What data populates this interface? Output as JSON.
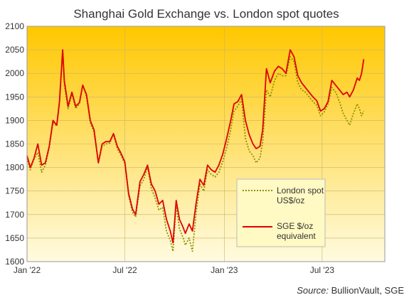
{
  "chart_data": {
    "type": "line",
    "title": "Shanghai  Gold Exchange  vs.  London  spot quotes",
    "source_label": "Source:",
    "source_text": " BullionVault, SGE",
    "xlabel": "",
    "ylabel": "",
    "ylim": [
      1600,
      2100
    ],
    "yticks": [
      1600,
      1650,
      1700,
      1750,
      1800,
      1850,
      1900,
      1950,
      2000,
      2050,
      2100
    ],
    "xlim": [
      "2022-01-01",
      "2023-10-25"
    ],
    "xticks": [
      {
        "date": "2022-01-01",
        "label": "Jan '22"
      },
      {
        "date": "2022-07-01",
        "label": "Jul '22"
      },
      {
        "date": "2023-01-01",
        "label": "Jan '23"
      },
      {
        "date": "2023-07-01",
        "label": "Jul '23"
      }
    ],
    "gridlines": true,
    "legend_position": "lower-right",
    "background_gradient": [
      "#ffc700",
      "#fffbe0"
    ],
    "series": [
      {
        "name": "London spot\nUS$/oz",
        "color": "#8f8f00",
        "style": "dotted",
        "points": [
          [
            "2022-01-01",
            1820
          ],
          [
            "2022-01-07",
            1795
          ],
          [
            "2022-01-14",
            1818
          ],
          [
            "2022-01-21",
            1832
          ],
          [
            "2022-01-28",
            1790
          ],
          [
            "2022-02-04",
            1805
          ],
          [
            "2022-02-11",
            1842
          ],
          [
            "2022-02-18",
            1895
          ],
          [
            "2022-02-25",
            1888
          ],
          [
            "2022-03-02",
            1935
          ],
          [
            "2022-03-08",
            2050
          ],
          [
            "2022-03-11",
            1975
          ],
          [
            "2022-03-18",
            1925
          ],
          [
            "2022-03-25",
            1955
          ],
          [
            "2022-04-01",
            1925
          ],
          [
            "2022-04-08",
            1935
          ],
          [
            "2022-04-14",
            1975
          ],
          [
            "2022-04-21",
            1950
          ],
          [
            "2022-04-28",
            1895
          ],
          [
            "2022-05-05",
            1875
          ],
          [
            "2022-05-13",
            1810
          ],
          [
            "2022-05-20",
            1845
          ],
          [
            "2022-05-27",
            1850
          ],
          [
            "2022-06-03",
            1852
          ],
          [
            "2022-06-10",
            1870
          ],
          [
            "2022-06-17",
            1840
          ],
          [
            "2022-06-24",
            1825
          ],
          [
            "2022-07-01",
            1808
          ],
          [
            "2022-07-08",
            1740
          ],
          [
            "2022-07-15",
            1705
          ],
          [
            "2022-07-21",
            1695
          ],
          [
            "2022-07-29",
            1760
          ],
          [
            "2022-08-05",
            1775
          ],
          [
            "2022-08-12",
            1800
          ],
          [
            "2022-08-19",
            1755
          ],
          [
            "2022-08-26",
            1735
          ],
          [
            "2022-09-02",
            1710
          ],
          [
            "2022-09-09",
            1715
          ],
          [
            "2022-09-16",
            1665
          ],
          [
            "2022-09-23",
            1645
          ],
          [
            "2022-09-28",
            1622
          ],
          [
            "2022-10-04",
            1720
          ],
          [
            "2022-10-10",
            1670
          ],
          [
            "2022-10-17",
            1650
          ],
          [
            "2022-10-21",
            1635
          ],
          [
            "2022-10-28",
            1650
          ],
          [
            "2022-11-03",
            1622
          ],
          [
            "2022-11-10",
            1705
          ],
          [
            "2022-11-17",
            1765
          ],
          [
            "2022-11-24",
            1750
          ],
          [
            "2022-12-01",
            1795
          ],
          [
            "2022-12-08",
            1785
          ],
          [
            "2022-12-15",
            1780
          ],
          [
            "2022-12-22",
            1790
          ],
          [
            "2022-12-29",
            1812
          ],
          [
            "2023-01-05",
            1840
          ],
          [
            "2023-01-12",
            1875
          ],
          [
            "2023-01-19",
            1920
          ],
          [
            "2023-01-26",
            1930
          ],
          [
            "2023-02-02",
            1945
          ],
          [
            "2023-02-09",
            1862
          ],
          [
            "2023-02-16",
            1835
          ],
          [
            "2023-02-23",
            1825
          ],
          [
            "2023-03-01",
            1810
          ],
          [
            "2023-03-08",
            1820
          ],
          [
            "2023-03-13",
            1855
          ],
          [
            "2023-03-20",
            1965
          ],
          [
            "2023-03-27",
            1950
          ],
          [
            "2023-04-04",
            1985
          ],
          [
            "2023-04-11",
            2000
          ],
          [
            "2023-04-18",
            1995
          ],
          [
            "2023-04-25",
            1995
          ],
          [
            "2023-05-03",
            2035
          ],
          [
            "2023-05-10",
            2025
          ],
          [
            "2023-05-17",
            1980
          ],
          [
            "2023-05-24",
            1965
          ],
          [
            "2023-05-31",
            1960
          ],
          [
            "2023-06-07",
            1950
          ],
          [
            "2023-06-14",
            1940
          ],
          [
            "2023-06-21",
            1932
          ],
          [
            "2023-06-28",
            1910
          ],
          [
            "2023-07-05",
            1918
          ],
          [
            "2023-07-12",
            1935
          ],
          [
            "2023-07-19",
            1970
          ],
          [
            "2023-07-26",
            1960
          ],
          [
            "2023-08-02",
            1940
          ],
          [
            "2023-08-09",
            1915
          ],
          [
            "2023-08-16",
            1900
          ],
          [
            "2023-08-21",
            1890
          ],
          [
            "2023-08-28",
            1915
          ],
          [
            "2023-09-04",
            1935
          ],
          [
            "2023-09-08",
            1925
          ],
          [
            "2023-09-12",
            1910
          ],
          [
            "2023-09-16",
            1920
          ]
        ]
      },
      {
        "name": "SGE $/oz\nequivalent",
        "color": "#e00000",
        "style": "solid",
        "points": [
          [
            "2022-01-01",
            1825
          ],
          [
            "2022-01-07",
            1800
          ],
          [
            "2022-01-14",
            1820
          ],
          [
            "2022-01-21",
            1850
          ],
          [
            "2022-01-28",
            1805
          ],
          [
            "2022-02-04",
            1810
          ],
          [
            "2022-02-11",
            1845
          ],
          [
            "2022-02-18",
            1900
          ],
          [
            "2022-02-25",
            1890
          ],
          [
            "2022-03-02",
            1940
          ],
          [
            "2022-03-08",
            2050
          ],
          [
            "2022-03-11",
            1985
          ],
          [
            "2022-03-18",
            1930
          ],
          [
            "2022-03-25",
            1960
          ],
          [
            "2022-04-01",
            1930
          ],
          [
            "2022-04-08",
            1938
          ],
          [
            "2022-04-14",
            1975
          ],
          [
            "2022-04-21",
            1955
          ],
          [
            "2022-04-28",
            1900
          ],
          [
            "2022-05-05",
            1880
          ],
          [
            "2022-05-13",
            1810
          ],
          [
            "2022-05-20",
            1850
          ],
          [
            "2022-05-27",
            1855
          ],
          [
            "2022-06-03",
            1855
          ],
          [
            "2022-06-10",
            1872
          ],
          [
            "2022-06-17",
            1845
          ],
          [
            "2022-06-24",
            1830
          ],
          [
            "2022-07-01",
            1812
          ],
          [
            "2022-07-08",
            1745
          ],
          [
            "2022-07-15",
            1712
          ],
          [
            "2022-07-21",
            1700
          ],
          [
            "2022-07-29",
            1770
          ],
          [
            "2022-08-05",
            1785
          ],
          [
            "2022-08-12",
            1805
          ],
          [
            "2022-08-19",
            1765
          ],
          [
            "2022-08-26",
            1750
          ],
          [
            "2022-09-02",
            1722
          ],
          [
            "2022-09-09",
            1730
          ],
          [
            "2022-09-16",
            1690
          ],
          [
            "2022-09-23",
            1665
          ],
          [
            "2022-09-28",
            1640
          ],
          [
            "2022-10-04",
            1730
          ],
          [
            "2022-10-10",
            1690
          ],
          [
            "2022-10-17",
            1672
          ],
          [
            "2022-10-21",
            1660
          ],
          [
            "2022-10-28",
            1680
          ],
          [
            "2022-11-03",
            1665
          ],
          [
            "2022-11-10",
            1725
          ],
          [
            "2022-11-17",
            1775
          ],
          [
            "2022-11-24",
            1762
          ],
          [
            "2022-12-01",
            1805
          ],
          [
            "2022-12-08",
            1795
          ],
          [
            "2022-12-15",
            1790
          ],
          [
            "2022-12-22",
            1805
          ],
          [
            "2022-12-29",
            1828
          ],
          [
            "2023-01-05",
            1860
          ],
          [
            "2023-01-12",
            1895
          ],
          [
            "2023-01-19",
            1935
          ],
          [
            "2023-01-26",
            1940
          ],
          [
            "2023-02-02",
            1955
          ],
          [
            "2023-02-09",
            1900
          ],
          [
            "2023-02-16",
            1870
          ],
          [
            "2023-02-23",
            1850
          ],
          [
            "2023-03-01",
            1840
          ],
          [
            "2023-03-08",
            1845
          ],
          [
            "2023-03-13",
            1880
          ],
          [
            "2023-03-20",
            2010
          ],
          [
            "2023-03-27",
            1980
          ],
          [
            "2023-04-04",
            2005
          ],
          [
            "2023-04-11",
            2015
          ],
          [
            "2023-04-18",
            2010
          ],
          [
            "2023-04-25",
            2000
          ],
          [
            "2023-05-03",
            2050
          ],
          [
            "2023-05-10",
            2035
          ],
          [
            "2023-05-17",
            1995
          ],
          [
            "2023-05-24",
            1980
          ],
          [
            "2023-05-31",
            1970
          ],
          [
            "2023-06-07",
            1960
          ],
          [
            "2023-06-14",
            1950
          ],
          [
            "2023-06-21",
            1942
          ],
          [
            "2023-06-28",
            1920
          ],
          [
            "2023-07-05",
            1925
          ],
          [
            "2023-07-12",
            1940
          ],
          [
            "2023-07-19",
            1985
          ],
          [
            "2023-07-26",
            1975
          ],
          [
            "2023-08-02",
            1965
          ],
          [
            "2023-08-09",
            1955
          ],
          [
            "2023-08-16",
            1960
          ],
          [
            "2023-08-21",
            1950
          ],
          [
            "2023-08-28",
            1965
          ],
          [
            "2023-09-04",
            1990
          ],
          [
            "2023-09-08",
            1985
          ],
          [
            "2023-09-12",
            2000
          ],
          [
            "2023-09-16",
            2030
          ]
        ]
      }
    ]
  }
}
